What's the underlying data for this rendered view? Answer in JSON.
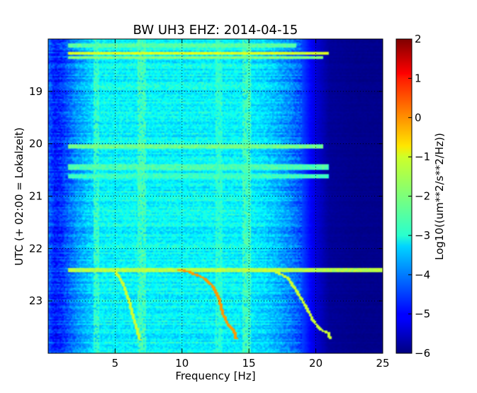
{
  "chart_data": {
    "type": "heatmap",
    "title": "BW UH3 EHZ: 2014-04-15",
    "xlabel": "Frequency [Hz]",
    "ylabel": "UTC (+ 02:00 = Lokalzeit)",
    "xlim": [
      0,
      25
    ],
    "ylim": [
      24,
      18
    ],
    "x_ticks": [
      5,
      10,
      15,
      20,
      25
    ],
    "x_tick_labels": [
      "5",
      "10",
      "15",
      "20",
      "25"
    ],
    "y_ticks": [
      19,
      20,
      21,
      22,
      23
    ],
    "y_tick_labels": [
      "19",
      "20",
      "21",
      "22",
      "23"
    ],
    "grid": true,
    "colormap": "jet",
    "colorbar": {
      "label": "Log10((um**2/s**2/Hz))",
      "vmin": -6,
      "vmax": 2,
      "ticks": [
        2,
        1,
        0,
        -1,
        -2,
        -3,
        -4,
        -5,
        -6
      ],
      "tick_labels": [
        "2",
        "1",
        "0",
        "−1",
        "−2",
        "−3",
        "−4",
        "−5",
        "−6"
      ]
    },
    "background_profile": {
      "frequency_hz": [
        0,
        0.5,
        1,
        2,
        3,
        4,
        6,
        8,
        10,
        12,
        14,
        16,
        17,
        18,
        18.8,
        19.5,
        20,
        21,
        23,
        25
      ],
      "log10_psd": [
        -4.2,
        -4.8,
        -4.6,
        -3.9,
        -3.4,
        -3.0,
        -3.0,
        -3.0,
        -3.0,
        -3.0,
        -3.0,
        -3.2,
        -3.5,
        -3.9,
        -4.3,
        -4.9,
        -5.3,
        -5.8,
        -5.9,
        -5.9
      ]
    },
    "horizontal_bands": [
      {
        "time_utc": 18.12,
        "half_width_h": 0.04,
        "fmax_hz": 18.5,
        "log10_psd": -2.3
      },
      {
        "time_utc": 18.28,
        "half_width_h": 0.03,
        "fmax_hz": 21,
        "log10_psd": -1.3
      },
      {
        "time_utc": 18.36,
        "half_width_h": 0.03,
        "fmax_hz": 20.5,
        "log10_psd": -2.0
      },
      {
        "time_utc": 20.05,
        "half_width_h": 0.05,
        "fmax_hz": 20.5,
        "log10_psd": -2.1
      },
      {
        "time_utc": 20.45,
        "half_width_h": 0.06,
        "fmax_hz": 21,
        "log10_psd": -2.4
      },
      {
        "time_utc": 20.62,
        "half_width_h": 0.05,
        "fmax_hz": 21,
        "log10_psd": -2.5
      },
      {
        "time_utc": 22.4,
        "half_width_h": 0.04,
        "fmax_hz": 25,
        "log10_psd": -1.6
      }
    ],
    "vertical_bands": [
      {
        "frequency_hz": 3.6,
        "half_width_hz": 0.2,
        "log10_psd": -2.5
      },
      {
        "frequency_hz": 7.0,
        "half_width_hz": 0.3,
        "log10_psd": -2.4
      },
      {
        "frequency_hz": 12.8,
        "half_width_hz": 0.25,
        "log10_psd": -2.6
      },
      {
        "frequency_hz": 14.8,
        "half_width_hz": 0.3,
        "log10_psd": -2.4
      }
    ],
    "chirp_lines": [
      {
        "name": "",
        "log10_psd": -1.4,
        "points": [
          [
            5.0,
            22.45
          ],
          [
            5.5,
            22.65
          ],
          [
            6.0,
            23.0
          ],
          [
            6.3,
            23.3
          ],
          [
            6.6,
            23.55
          ],
          [
            6.8,
            23.75
          ]
        ]
      },
      {
        "name": "",
        "log10_psd": -0.2,
        "points": [
          [
            9.7,
            22.4
          ],
          [
            10.5,
            22.45
          ],
          [
            11.5,
            22.55
          ],
          [
            12.2,
            22.7
          ],
          [
            12.7,
            22.95
          ],
          [
            13.0,
            23.25
          ],
          [
            13.4,
            23.45
          ],
          [
            13.8,
            23.55
          ],
          [
            14.0,
            23.72
          ]
        ]
      },
      {
        "name": "",
        "log10_psd": -1.4,
        "points": [
          [
            16.0,
            22.42
          ],
          [
            17.0,
            22.45
          ],
          [
            17.8,
            22.55
          ],
          [
            18.5,
            22.8
          ],
          [
            19.2,
            23.1
          ],
          [
            19.7,
            23.35
          ],
          [
            20.3,
            23.55
          ],
          [
            20.9,
            23.62
          ],
          [
            21.0,
            23.72
          ]
        ]
      }
    ]
  }
}
